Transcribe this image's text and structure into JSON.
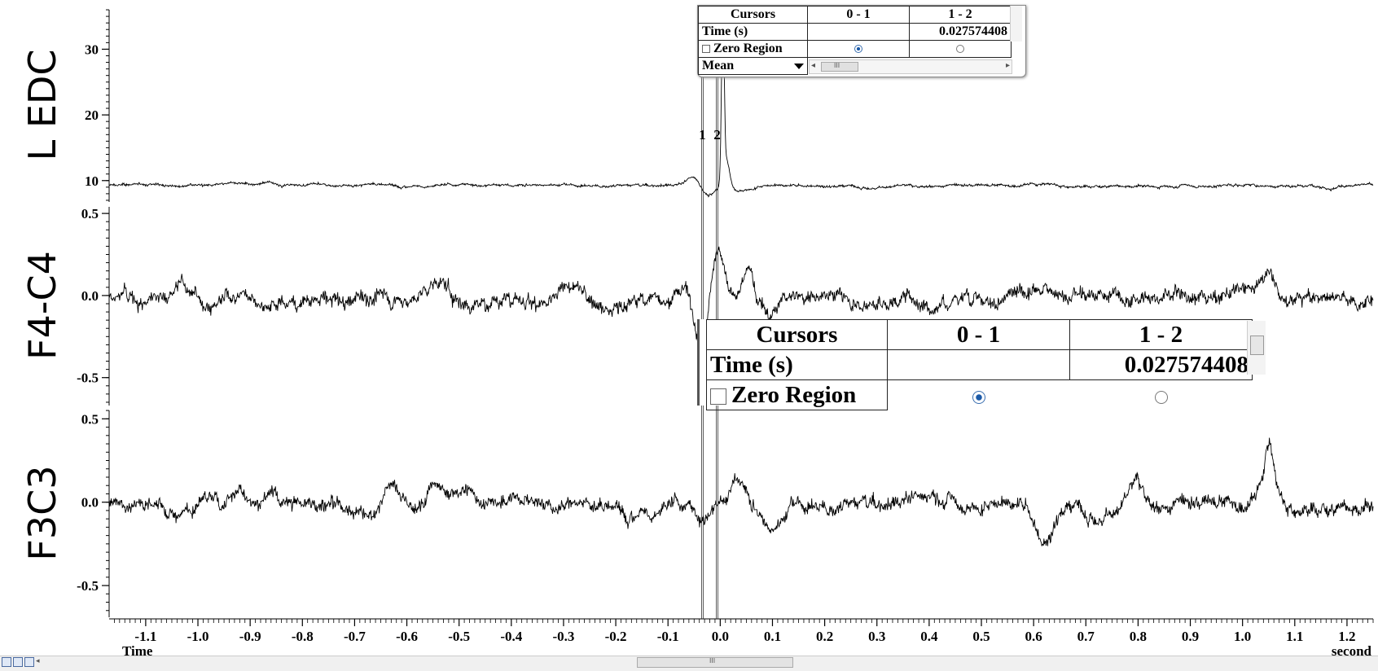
{
  "chart_data": {
    "type": "line",
    "x_axis": {
      "label": "Time",
      "unit_label": "second",
      "range": [
        -1.17,
        1.25
      ],
      "ticks": [
        -1.1,
        -1.0,
        -0.9,
        -0.8,
        -0.7,
        -0.6,
        -0.5,
        -0.4,
        -0.3,
        -0.2,
        -0.1,
        0.0,
        0.1,
        0.2,
        0.3,
        0.4,
        0.5,
        0.6,
        0.7,
        0.8,
        0.9,
        1.0,
        1.1,
        1.2
      ],
      "tick_labels": [
        "-1.1",
        "-1.0",
        "-0.9",
        "-0.8",
        "-0.7",
        "-0.6",
        "-0.5",
        "-0.4",
        "-0.3",
        "-0.2",
        "-0.1",
        "0.0",
        "0.1",
        "0.2",
        "0.3",
        "0.4",
        "0.5",
        "0.6",
        "0.7",
        "0.8",
        "0.9",
        "1.0",
        "1.1",
        "1.2"
      ]
    },
    "channels": [
      {
        "name": "L EDC",
        "ylim": [
          6.5,
          36.5
        ],
        "yticks": [
          10,
          20,
          30
        ],
        "ytick_labels": [
          "10",
          "20",
          "30"
        ],
        "baseline": 9.3,
        "noise": 0.25,
        "events": [
          {
            "t": -0.05,
            "amp": 1.2,
            "width": 0.012
          },
          {
            "t": -0.025,
            "amp": -1.8,
            "width": 0.012
          },
          {
            "t": 0.005,
            "amp": 26,
            "width": 0.0025
          },
          {
            "t": 0.012,
            "amp": 4,
            "width": 0.006
          },
          {
            "t": 0.04,
            "amp": -0.7,
            "width": 0.02
          }
        ]
      },
      {
        "name": "F4-C4",
        "ylim": [
          -0.68,
          0.56
        ],
        "yticks": [
          -0.5,
          0.0,
          0.5
        ],
        "ytick_labels": [
          "-0.5",
          "0.0",
          "0.5"
        ],
        "baseline": 0.0,
        "noise": 0.055,
        "events": [
          {
            "t": -0.037,
            "amp": -0.33,
            "width": 0.013
          },
          {
            "t": -0.065,
            "amp": 0.12,
            "width": 0.02
          },
          {
            "t": -0.005,
            "amp": 0.25,
            "width": 0.012
          },
          {
            "t": 0.055,
            "amp": 0.18,
            "width": 0.008
          },
          {
            "t": 0.1,
            "amp": -0.14,
            "width": 0.02
          },
          {
            "t": -1.03,
            "amp": 0.1,
            "width": 0.008
          },
          {
            "t": -0.55,
            "amp": 0.1,
            "width": 0.015
          },
          {
            "t": 1.05,
            "amp": 0.14,
            "width": 0.012
          }
        ]
      },
      {
        "name": "F3C3",
        "ylim": [
          -0.7,
          0.57
        ],
        "yticks": [
          -0.5,
          0.0,
          0.5
        ],
        "ytick_labels": [
          "-0.5",
          "0.0",
          "0.5"
        ],
        "baseline": 0.0,
        "noise": 0.055,
        "events": [
          {
            "t": 1.05,
            "amp": 0.32,
            "width": 0.009
          },
          {
            "t": 0.62,
            "amp": -0.22,
            "width": 0.015
          },
          {
            "t": 0.1,
            "amp": -0.16,
            "width": 0.02
          },
          {
            "t": 0.035,
            "amp": 0.17,
            "width": 0.012
          },
          {
            "t": -0.04,
            "amp": -0.1,
            "width": 0.012
          },
          {
            "t": 0.8,
            "amp": 0.14,
            "width": 0.015
          },
          {
            "t": -0.63,
            "amp": 0.14,
            "width": 0.015
          },
          {
            "t": -0.55,
            "amp": 0.12,
            "width": 0.012
          }
        ]
      }
    ],
    "cursors": [
      {
        "label": "1",
        "t": -0.034
      },
      {
        "label": "2",
        "t": -0.006
      }
    ]
  },
  "cursor_panel_small": {
    "col_header": "Cursors",
    "col_a": "0 - 1",
    "col_b": "1 - 2",
    "row_time_label": "Time (s)",
    "row_time_a": "",
    "row_time_b": "0.027574408",
    "row_zero_label": "Zero Region",
    "row_zero_a_selected": true,
    "row_stat_label": "Mean",
    "scroll_glyph": "III"
  },
  "cursor_panel_zoom": {
    "col_header": "Cursors",
    "col_a": "0 - 1",
    "col_b": "1 - 2",
    "row_time_label": "Time (s)",
    "row_time_a": "",
    "row_time_b": "0.027574408",
    "row_zero_label": "Zero Region",
    "row_zero_a_selected": true
  },
  "bottom_bar": {
    "scroll_glyph": "III"
  }
}
